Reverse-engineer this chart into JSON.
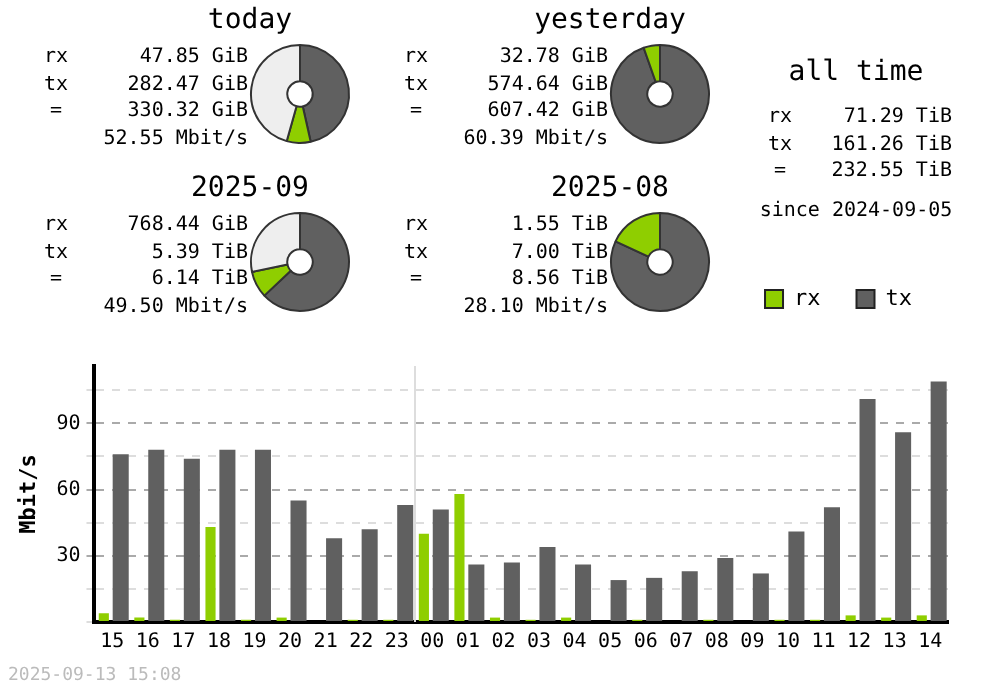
{
  "chart_data": [
    {
      "type": "donut",
      "title": "today",
      "categories": [
        null,
        null,
        null
      ],
      "values": [
        46.5,
        7.88,
        45.62
      ],
      "colors": [
        "#606060",
        "#8fce00",
        "#eeeeee"
      ],
      "annotations": [
        "rx 47.85 GiB",
        "tx 282.47 GiB",
        "= 330.32 GiB",
        "52.55 Mbit/s"
      ]
    },
    {
      "type": "donut",
      "title": "yesterday",
      "categories": [
        null,
        null
      ],
      "values": [
        94.6,
        5.4
      ],
      "colors": [
        "#606060",
        "#8fce00"
      ],
      "annotations": [
        "rx 32.78 GiB",
        "tx 574.64 GiB",
        "= 607.42 GiB",
        "60.39 Mbit/s"
      ]
    },
    {
      "type": "other",
      "title": "all time",
      "annotations": [
        "rx 71.29 TiB",
        "tx 161.26 TiB",
        "= 232.55 TiB",
        "since 2024-09-05"
      ]
    },
    {
      "type": "donut",
      "title": "2025-09",
      "categories": [
        null,
        null,
        null
      ],
      "values": [
        62.97,
        8.77,
        28.26
      ],
      "colors": [
        "#606060",
        "#8fce00",
        "#eeeeee"
      ],
      "annotations": [
        "rx 768.44 GiB",
        "tx 5.39 TiB",
        "= 6.14 TiB",
        "49.50 Mbit/s"
      ]
    },
    {
      "type": "donut",
      "title": "2025-08",
      "categories": [
        null,
        null
      ],
      "values": [
        81.9,
        18.1
      ],
      "colors": [
        "#606060",
        "#8fce00"
      ],
      "annotations": [
        "rx 1.55 TiB",
        "tx 7.00 TiB",
        "= 8.56 TiB",
        "28.10 Mbit/s"
      ]
    },
    {
      "type": "bar",
      "categories": [
        "15",
        "16",
        "17",
        "18",
        "19",
        "20",
        "21",
        "22",
        "23",
        "00",
        "01",
        "02",
        "03",
        "04",
        "05",
        "06",
        "07",
        "08",
        "09",
        "10",
        "11",
        "12",
        "13",
        "14"
      ],
      "series": [
        {
          "name": "rx",
          "color": "#8fce00",
          "values": [
            4,
            2,
            1,
            43,
            1,
            2,
            0,
            1,
            1,
            40,
            58,
            2,
            1,
            2,
            0,
            1,
            0,
            1,
            0,
            1,
            1,
            3,
            2,
            3
          ]
        },
        {
          "name": "tx",
          "color": "#606060",
          "values": [
            76,
            78,
            74,
            78,
            78,
            55,
            38,
            42,
            53,
            51,
            26,
            27,
            34,
            26,
            19,
            20,
            23,
            29,
            22,
            41,
            52,
            101,
            86,
            109
          ]
        }
      ],
      "ylabel": "Mbit/s",
      "ylim": [
        0,
        116
      ],
      "yticks": [
        {
          "value": 0,
          "label": null
        },
        {
          "value": 15,
          "label": null
        },
        30,
        {
          "value": 45,
          "label": null
        },
        60,
        {
          "value": 75,
          "label": null
        },
        90,
        {
          "value": 105,
          "label": null
        }
      ],
      "grid": "y",
      "legend": "top right",
      "ref_lines": [
        {
          "axis": "x",
          "value": "00",
          "color": "#dddddd"
        }
      ],
      "annotations": [
        "2025-09-13 15:08"
      ]
    }
  ]
}
